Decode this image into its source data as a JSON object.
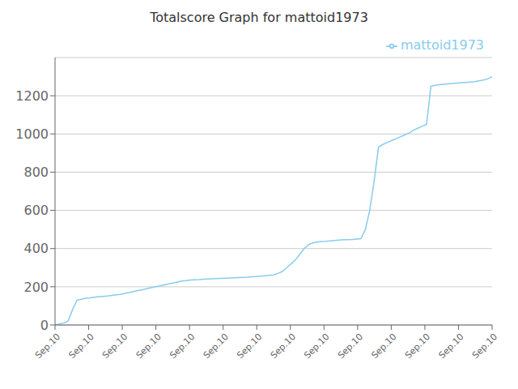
{
  "chart_data": {
    "type": "line",
    "title": "Totalscore Graph for mattoid1973",
    "x": [
      0,
      1,
      2,
      3,
      4,
      5,
      6,
      7,
      8,
      9,
      10,
      11,
      12,
      13,
      14,
      15,
      16,
      17,
      18,
      19,
      20,
      21,
      22,
      23,
      24,
      25,
      26,
      27,
      28,
      29,
      30,
      31,
      32,
      33,
      34,
      35,
      36,
      37,
      38,
      39,
      40,
      41,
      42,
      43,
      44,
      45,
      46,
      47,
      48,
      49,
      50,
      51,
      52,
      53,
      54,
      55,
      56,
      57,
      58,
      59,
      60,
      61,
      62,
      63,
      64,
      65,
      66,
      67,
      68,
      69,
      70,
      71,
      72,
      73,
      74,
      75,
      76,
      77,
      78,
      79,
      80,
      81,
      82,
      83,
      84,
      85,
      86,
      87,
      88,
      89,
      90,
      91,
      92,
      93,
      94,
      95,
      96,
      97,
      98,
      99,
      100
    ],
    "series": [
      {
        "name": "mattoid1973",
        "color": "#88ccee",
        "values": [
          0,
          5,
          10,
          20,
          80,
          130,
          135,
          140,
          142,
          145,
          148,
          150,
          152,
          155,
          158,
          160,
          165,
          170,
          175,
          180,
          185,
          190,
          195,
          200,
          205,
          210,
          215,
          220,
          225,
          230,
          232,
          235,
          237,
          238,
          240,
          241,
          242,
          243,
          244,
          245,
          246,
          247,
          248,
          249,
          250,
          252,
          254,
          256,
          258,
          260,
          262,
          270,
          280,
          300,
          320,
          340,
          370,
          400,
          420,
          430,
          435,
          437,
          438,
          440,
          442,
          444,
          446,
          447,
          448,
          450,
          452,
          500,
          600,
          750,
          930,
          945,
          955,
          965,
          975,
          985,
          995,
          1005,
          1020,
          1030,
          1040,
          1050,
          1250,
          1255,
          1258,
          1260,
          1262,
          1264,
          1266,
          1268,
          1270,
          1272,
          1274,
          1278,
          1282,
          1288,
          1300
        ]
      }
    ],
    "xlim": [
      0,
      100
    ],
    "xticks": [
      {
        "value": 0,
        "label": "Sep.10"
      },
      {
        "value": 7.6923076923076925,
        "label": "Sep.10"
      },
      {
        "value": 15.384615384615385,
        "label": "Sep.10"
      },
      {
        "value": 23.076923076923077,
        "label": "Sep.10"
      },
      {
        "value": 30.76923076923077,
        "label": "Sep.10"
      },
      {
        "value": 38.46153846153846,
        "label": "Sep.10"
      },
      {
        "value": 46.15384615384615,
        "label": "Sep.10"
      },
      {
        "value": 53.84615384615385,
        "label": "Sep.10"
      },
      {
        "value": 61.53846153846154,
        "label": "Sep.10"
      },
      {
        "value": 69.23076923076923,
        "label": "Sep.10"
      },
      {
        "value": 76.92307692307692,
        "label": "Sep.10"
      },
      {
        "value": 84.61538461538461,
        "label": "Sep.10"
      },
      {
        "value": 92.3076923076923,
        "label": "Sep.10"
      },
      {
        "value": 100,
        "label": "Sep.10"
      }
    ],
    "ylim": [
      0,
      1400
    ],
    "yticks": [
      0,
      200,
      400,
      600,
      800,
      1000,
      1200
    ],
    "grid": true,
    "legend": "upper right"
  }
}
